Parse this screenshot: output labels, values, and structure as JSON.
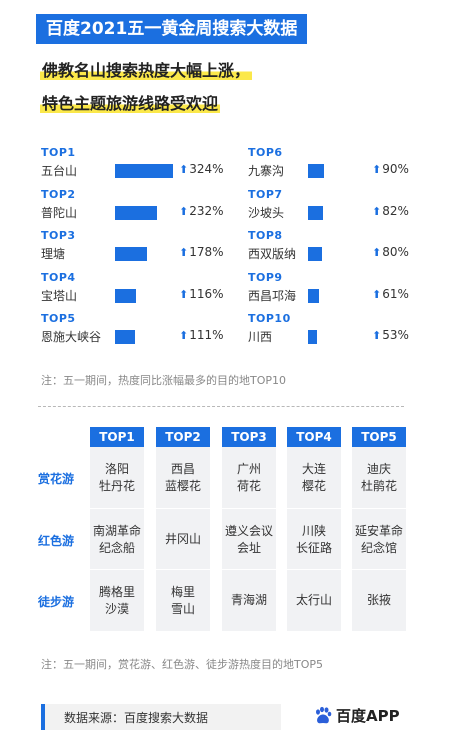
{
  "header": {
    "title": "百度2021五一黄金周搜索大数据",
    "subtitle_line1": "佛教名山搜索热度大幅上涨，",
    "subtitle_line2": "特色主题旅游线路受欢迎"
  },
  "ranking": {
    "left": [
      {
        "rank": "TOP1",
        "name": "五台山",
        "pct": "324%",
        "value": 324
      },
      {
        "rank": "TOP2",
        "name": "普陀山",
        "pct": "232%",
        "value": 232
      },
      {
        "rank": "TOP3",
        "name": "理塘",
        "pct": "178%",
        "value": 178
      },
      {
        "rank": "TOP4",
        "name": "宝塔山",
        "pct": "116%",
        "value": 116
      },
      {
        "rank": "TOP5",
        "name": "恩施大峡谷",
        "pct": "111%",
        "value": 111
      }
    ],
    "right": [
      {
        "rank": "TOP6",
        "name": "九寨沟",
        "pct": "90%",
        "value": 90
      },
      {
        "rank": "TOP7",
        "name": "沙坡头",
        "pct": "82%",
        "value": 82
      },
      {
        "rank": "TOP8",
        "name": "西双版纳",
        "pct": "80%",
        "value": 80
      },
      {
        "rank": "TOP9",
        "name": "西昌邛海",
        "pct": "61%",
        "value": 61
      },
      {
        "rank": "TOP10",
        "name": "川西",
        "pct": "53%",
        "value": 53
      }
    ],
    "note": "注：五一期间，热度同比涨幅最多的目的地TOP10"
  },
  "theme_table": {
    "headers": [
      "TOP1",
      "TOP2",
      "TOP3",
      "TOP4",
      "TOP5"
    ],
    "rows": [
      {
        "label": "赏花游",
        "cells": [
          [
            "洛阳",
            "牡丹花"
          ],
          [
            "西昌",
            "蓝樱花"
          ],
          [
            "广州",
            "荷花"
          ],
          [
            "大连",
            "樱花"
          ],
          [
            "迪庆",
            "杜鹃花"
          ]
        ]
      },
      {
        "label": "红色游",
        "cells": [
          [
            "南湖革命",
            "纪念船"
          ],
          [
            "井冈山"
          ],
          [
            "遵义会议",
            "会址"
          ],
          [
            "川陕",
            "长征路"
          ],
          [
            "延安革命",
            "纪念馆"
          ]
        ]
      },
      {
        "label": "徒步游",
        "cells": [
          [
            "腾格里",
            "沙漠"
          ],
          [
            "梅里",
            "雪山"
          ],
          [
            "青海湖"
          ],
          [
            "太行山"
          ],
          [
            "张掖"
          ]
        ]
      }
    ],
    "note": "注：五一期间，赏花游、红色游、徒步游热度目的地TOP5"
  },
  "footer": {
    "source": "数据来源：百度搜索大数据",
    "logo_text": "百度APP",
    "logo_icon": "baidu-paw-icon"
  },
  "colors": {
    "accent": "#1b6fe0",
    "highlight": "#fbe84a",
    "cell_bg": "#f1f2f4"
  }
}
